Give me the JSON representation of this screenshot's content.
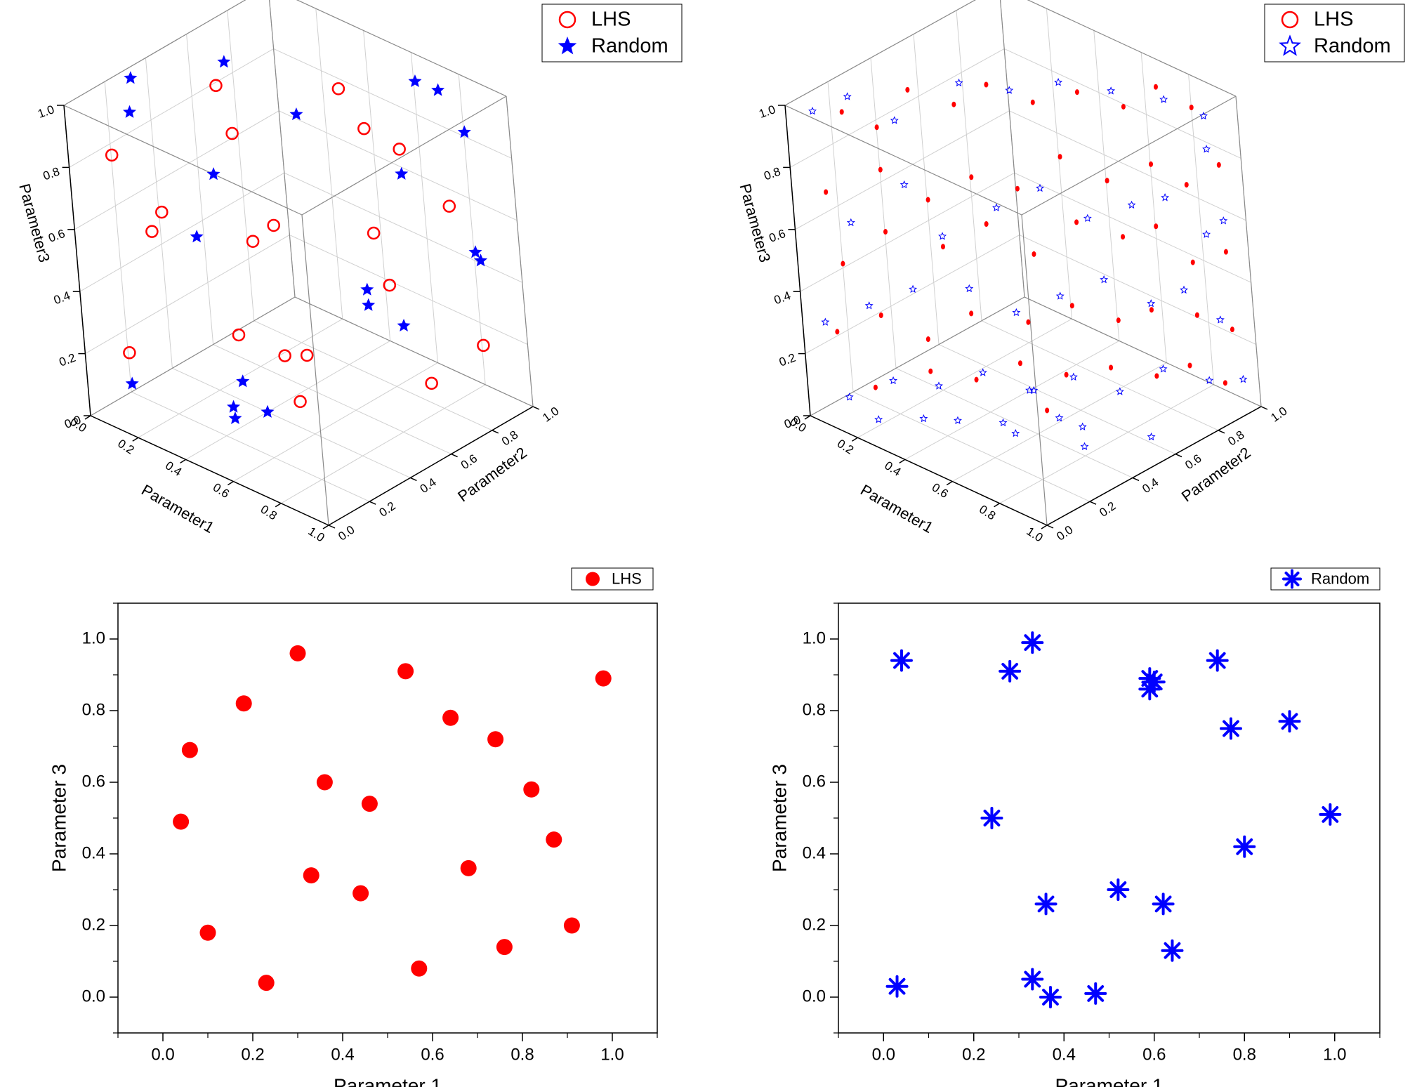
{
  "chart_data": [
    {
      "type": "scatter",
      "projection": "3d",
      "markers": "large",
      "xlabel": "Parameter1",
      "ylabel": "Parameter2",
      "zlabel": "Parameter3",
      "xlim": [
        0,
        1
      ],
      "ylim": [
        0,
        1
      ],
      "zlim": [
        0,
        1
      ],
      "ticks": [
        "0.0",
        "0.2",
        "0.4",
        "0.6",
        "0.8",
        "1.0"
      ],
      "legend": {
        "position": "top-right"
      },
      "series": [
        {
          "name": "LHS",
          "marker": "open-circle",
          "color": "#ff0000",
          "points": [
            [
              0.05,
              0.15,
              0.8
            ],
            [
              0.25,
              0.45,
              0.98
            ],
            [
              0.35,
              0.4,
              0.88
            ],
            [
              0.55,
              0.7,
              0.98
            ],
            [
              0.6,
              0.75,
              0.85
            ],
            [
              0.7,
              0.8,
              0.8
            ],
            [
              0.15,
              0.2,
              0.57
            ],
            [
              0.2,
              0.2,
              0.65
            ],
            [
              0.4,
              0.4,
              0.55
            ],
            [
              0.45,
              0.45,
              0.6
            ],
            [
              0.65,
              0.7,
              0.55
            ],
            [
              0.85,
              0.85,
              0.65
            ],
            [
              0.7,
              0.7,
              0.4
            ],
            [
              0.1,
              0.1,
              0.2
            ],
            [
              0.35,
              0.35,
              0.25
            ],
            [
              0.45,
              0.45,
              0.18
            ],
            [
              0.5,
              0.5,
              0.18
            ],
            [
              0.9,
              0.9,
              0.2
            ],
            [
              0.8,
              0.75,
              0.1
            ],
            [
              0.5,
              0.45,
              0.05
            ]
          ]
        },
        {
          "name": "Random",
          "marker": "star",
          "color": "#0000ff",
          "points": [
            [
              0.02,
              0.3,
              0.98
            ],
            [
              0.05,
              0.25,
              0.9
            ],
            [
              0.2,
              0.55,
              1.0
            ],
            [
              0.45,
              0.6,
              0.9
            ],
            [
              0.7,
              0.9,
              0.98
            ],
            [
              0.75,
              0.95,
              0.95
            ],
            [
              0.85,
              0.95,
              0.85
            ],
            [
              0.3,
              0.35,
              0.75
            ],
            [
              0.7,
              0.8,
              0.72
            ],
            [
              0.25,
              0.3,
              0.55
            ],
            [
              0.9,
              0.9,
              0.5
            ],
            [
              0.92,
              0.9,
              0.48
            ],
            [
              0.6,
              0.7,
              0.35
            ],
            [
              0.6,
              0.7,
              0.3
            ],
            [
              0.7,
              0.75,
              0.25
            ],
            [
              0.1,
              0.1,
              0.1
            ],
            [
              0.35,
              0.35,
              0.1
            ],
            [
              0.3,
              0.35,
              0.0
            ],
            [
              0.4,
              0.4,
              0.0
            ],
            [
              0.35,
              0.3,
              0.0
            ]
          ]
        }
      ]
    },
    {
      "type": "scatter",
      "projection": "3d",
      "markers": "small",
      "xlabel": "Parameter1",
      "ylabel": "Parameter2",
      "zlabel": "Parameter3",
      "xlim": [
        0,
        1
      ],
      "ylim": [
        0,
        1
      ],
      "zlim": [
        0,
        1
      ],
      "ticks": [
        "0.0",
        "0.2",
        "0.4",
        "0.6",
        "0.8",
        "1.0"
      ],
      "legend": {
        "position": "top-right"
      },
      "series": [
        {
          "name": "LHS",
          "marker": "open-circle",
          "color": "#ff0000",
          "points": [
            [
              0.05,
              0.2,
              0.92
            ],
            [
              0.1,
              0.3,
              0.85
            ],
            [
              0.15,
              0.4,
              0.95
            ],
            [
              0.25,
              0.5,
              0.9
            ],
            [
              0.35,
              0.55,
              0.98
            ],
            [
              0.45,
              0.65,
              0.92
            ],
            [
              0.55,
              0.75,
              0.95
            ],
            [
              0.65,
              0.85,
              0.9
            ],
            [
              0.75,
              0.9,
              0.98
            ],
            [
              0.85,
              0.95,
              0.93
            ],
            [
              0.05,
              0.1,
              0.7
            ],
            [
              0.15,
              0.25,
              0.75
            ],
            [
              0.25,
              0.35,
              0.65
            ],
            [
              0.35,
              0.45,
              0.72
            ],
            [
              0.45,
              0.55,
              0.68
            ],
            [
              0.55,
              0.65,
              0.78
            ],
            [
              0.65,
              0.75,
              0.7
            ],
            [
              0.75,
              0.85,
              0.75
            ],
            [
              0.85,
              0.9,
              0.7
            ],
            [
              0.95,
              0.95,
              0.78
            ],
            [
              0.05,
              0.15,
              0.45
            ],
            [
              0.15,
              0.25,
              0.55
            ],
            [
              0.25,
              0.4,
              0.48
            ],
            [
              0.35,
              0.5,
              0.55
            ],
            [
              0.45,
              0.6,
              0.45
            ],
            [
              0.55,
              0.7,
              0.55
            ],
            [
              0.65,
              0.8,
              0.5
            ],
            [
              0.75,
              0.85,
              0.55
            ],
            [
              0.85,
              0.9,
              0.45
            ],
            [
              0.95,
              0.95,
              0.5
            ],
            [
              0.05,
              0.1,
              0.25
            ],
            [
              0.15,
              0.2,
              0.3
            ],
            [
              0.25,
              0.3,
              0.22
            ],
            [
              0.35,
              0.4,
              0.3
            ],
            [
              0.45,
              0.55,
              0.25
            ],
            [
              0.55,
              0.65,
              0.3
            ],
            [
              0.65,
              0.75,
              0.25
            ],
            [
              0.75,
              0.8,
              0.3
            ],
            [
              0.85,
              0.9,
              0.28
            ],
            [
              0.95,
              0.95,
              0.25
            ],
            [
              0.1,
              0.2,
              0.05
            ],
            [
              0.2,
              0.35,
              0.08
            ],
            [
              0.3,
              0.45,
              0.05
            ],
            [
              0.4,
              0.55,
              0.1
            ],
            [
              0.5,
              0.65,
              0.06
            ],
            [
              0.6,
              0.75,
              0.08
            ],
            [
              0.7,
              0.85,
              0.05
            ],
            [
              0.8,
              0.9,
              0.1
            ],
            [
              0.9,
              0.95,
              0.06
            ],
            [
              0.55,
              0.5,
              0.02
            ]
          ]
        },
        {
          "name": "Random",
          "marker": "star",
          "color": "#0000ff",
          "points": [
            [
              0.02,
              0.1,
              0.95
            ],
            [
              0.08,
              0.2,
              0.98
            ],
            [
              0.18,
              0.3,
              0.9
            ],
            [
              0.28,
              0.5,
              0.98
            ],
            [
              0.4,
              0.6,
              0.96
            ],
            [
              0.52,
              0.7,
              0.99
            ],
            [
              0.65,
              0.8,
              0.97
            ],
            [
              0.78,
              0.9,
              0.95
            ],
            [
              0.9,
              0.95,
              0.92
            ],
            [
              0.95,
              0.9,
              0.85
            ],
            [
              0.1,
              0.15,
              0.6
            ],
            [
              0.2,
              0.3,
              0.7
            ],
            [
              0.3,
              0.35,
              0.55
            ],
            [
              0.4,
              0.5,
              0.62
            ],
            [
              0.5,
              0.6,
              0.68
            ],
            [
              0.6,
              0.7,
              0.58
            ],
            [
              0.7,
              0.8,
              0.62
            ],
            [
              0.8,
              0.85,
              0.66
            ],
            [
              0.9,
              0.92,
              0.55
            ],
            [
              0.95,
              0.95,
              0.6
            ],
            [
              0.05,
              0.05,
              0.3
            ],
            [
              0.15,
              0.15,
              0.35
            ],
            [
              0.25,
              0.25,
              0.4
            ],
            [
              0.35,
              0.4,
              0.38
            ],
            [
              0.45,
              0.5,
              0.3
            ],
            [
              0.55,
              0.6,
              0.35
            ],
            [
              0.65,
              0.7,
              0.4
            ],
            [
              0.75,
              0.8,
              0.32
            ],
            [
              0.85,
              0.85,
              0.38
            ],
            [
              0.95,
              0.9,
              0.3
            ],
            [
              0.08,
              0.1,
              0.05
            ],
            [
              0.18,
              0.2,
              0.1
            ],
            [
              0.28,
              0.3,
              0.08
            ],
            [
              0.38,
              0.4,
              0.12
            ],
            [
              0.48,
              0.5,
              0.06
            ],
            [
              0.58,
              0.6,
              0.1
            ],
            [
              0.68,
              0.7,
              0.05
            ],
            [
              0.78,
              0.8,
              0.12
            ],
            [
              0.88,
              0.9,
              0.08
            ],
            [
              0.98,
              0.95,
              0.1
            ],
            [
              0.3,
              0.2,
              0.02
            ],
            [
              0.5,
              0.35,
              0.02
            ],
            [
              0.7,
              0.5,
              0.02
            ],
            [
              0.9,
              0.6,
              0.02
            ],
            [
              0.6,
              0.3,
              0.04
            ],
            [
              0.4,
              0.25,
              0.03
            ],
            [
              0.2,
              0.1,
              0.02
            ],
            [
              0.8,
              0.4,
              0.03
            ],
            [
              0.45,
              0.55,
              0.03
            ],
            [
              0.65,
              0.45,
              0.05
            ]
          ]
        }
      ]
    },
    {
      "type": "scatter",
      "xlabel": "Parameter 1",
      "ylabel": "Parameter 3",
      "xlim": [
        -0.1,
        1.1
      ],
      "ylim": [
        -0.1,
        1.1
      ],
      "xticks": [
        "0.0",
        "0.2",
        "0.4",
        "0.6",
        "0.8",
        "1.0"
      ],
      "yticks": [
        "0.0",
        "0.2",
        "0.4",
        "0.6",
        "0.8",
        "1.0"
      ],
      "legend": {
        "position": "top-right"
      },
      "series": [
        {
          "name": "LHS",
          "marker": "filled-circle",
          "color": "#ff0000",
          "x": [
            0.3,
            0.54,
            0.98,
            0.18,
            0.64,
            0.06,
            0.74,
            0.36,
            0.46,
            0.82,
            0.04,
            0.87,
            0.68,
            0.33,
            0.44,
            0.91,
            0.1,
            0.76,
            0.57,
            0.23
          ],
          "y": [
            0.96,
            0.91,
            0.89,
            0.82,
            0.78,
            0.69,
            0.72,
            0.6,
            0.54,
            0.58,
            0.49,
            0.44,
            0.36,
            0.34,
            0.29,
            0.2,
            0.18,
            0.14,
            0.08,
            0.04
          ]
        }
      ]
    },
    {
      "type": "scatter",
      "xlabel": "Parameter 1",
      "ylabel": "Parameter 3",
      "xlim": [
        -0.1,
        1.1
      ],
      "ylim": [
        -0.1,
        1.1
      ],
      "xticks": [
        "0.0",
        "0.2",
        "0.4",
        "0.6",
        "0.8",
        "1.0"
      ],
      "yticks": [
        "0.0",
        "0.2",
        "0.4",
        "0.6",
        "0.8",
        "1.0"
      ],
      "legend": {
        "position": "top-right"
      },
      "series": [
        {
          "name": "Random",
          "marker": "star",
          "color": "#0000ff",
          "x": [
            0.04,
            0.33,
            0.28,
            0.59,
            0.6,
            0.59,
            0.74,
            0.77,
            0.9,
            0.24,
            0.99,
            0.8,
            0.52,
            0.36,
            0.62,
            0.64,
            0.03,
            0.33,
            0.37,
            0.47
          ],
          "y": [
            0.94,
            0.99,
            0.91,
            0.89,
            0.88,
            0.86,
            0.94,
            0.75,
            0.77,
            0.5,
            0.51,
            0.42,
            0.3,
            0.26,
            0.26,
            0.13,
            0.03,
            0.05,
            0.0,
            0.01
          ]
        }
      ]
    }
  ]
}
